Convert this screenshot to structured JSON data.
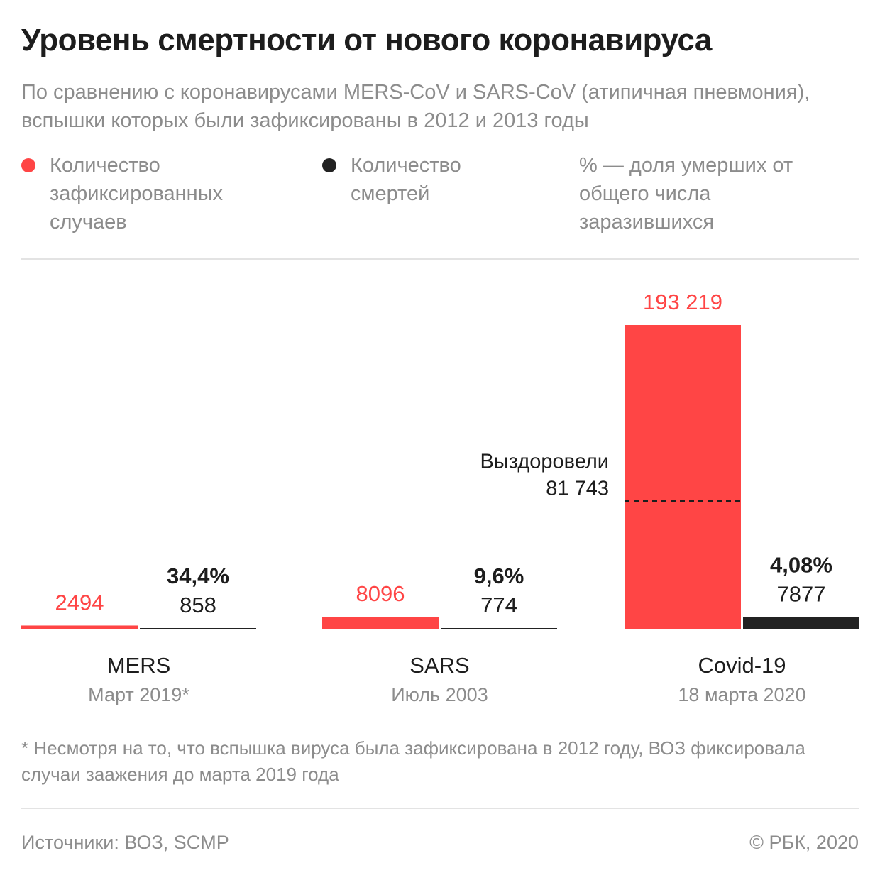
{
  "title": "Уровень смертности от нового коронавируса",
  "subtitle": "По сравнению с коронавирусами MERS-CoV и SARS-CoV (атипичная пневмония), вспышки которых были зафиксированы в 2012 и 2013 годы",
  "legend": {
    "cases": "Количество зафиксированных случаев",
    "deaths": "Количество смертей",
    "percent": "% — доля умерших от общего числа заразившихся"
  },
  "colors": {
    "cases": "#ff4545",
    "deaths": "#222222",
    "muted": "#8c8c8c"
  },
  "chart_data": {
    "type": "bar",
    "title": "Уровень смертности от нового коронавируса",
    "categories": [
      "MERS",
      "SARS",
      "Covid-19"
    ],
    "category_dates": [
      "Март 2019*",
      "Июль 2003",
      "18 марта 2020"
    ],
    "series": [
      {
        "name": "Количество зафиксированных случаев",
        "values": [
          2494,
          8096,
          193219
        ],
        "labels": [
          "2494",
          "8096",
          "193 219"
        ]
      },
      {
        "name": "Количество смертей",
        "values": [
          858,
          774,
          7877
        ],
        "labels": [
          "858",
          "774",
          "7877"
        ]
      }
    ],
    "death_rates": [
      "34,4%",
      "9,6%",
      "4,08%"
    ],
    "recovered": {
      "category": "Covid-19",
      "label": "Выздоровели",
      "value": 81743,
      "value_label": "81 743"
    },
    "ylim": [
      0,
      193219
    ],
    "xlabel": "",
    "ylabel": "",
    "grid": false
  },
  "footnote": "* Несмотря на то, что вспышка вируса была зафиксирована в 2012 году, ВОЗ фиксировала случаи заажения до марта 2019 года",
  "source": "Источники: ВОЗ, SCMP",
  "copyright": "© РБК, 2020"
}
